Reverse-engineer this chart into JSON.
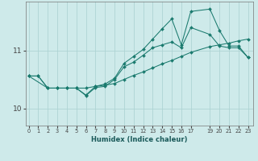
{
  "xlabel": "Humidex (Indice chaleur)",
  "bg_color": "#ceeaea",
  "line_color": "#1a7a6e",
  "grid_color": "#aed4d4",
  "x_ticks": [
    0,
    1,
    2,
    3,
    4,
    5,
    6,
    7,
    8,
    9,
    10,
    11,
    12,
    13,
    14,
    15,
    16,
    17,
    19,
    20,
    21,
    22,
    23
  ],
  "ylim": [
    9.7,
    11.85
  ],
  "xlim": [
    -0.3,
    23.5
  ],
  "yticks": [
    10,
    11
  ],
  "series_flat": [
    [
      0,
      10.56
    ],
    [
      1,
      10.56
    ],
    [
      2,
      10.35
    ],
    [
      3,
      10.35
    ],
    [
      4,
      10.35
    ],
    [
      5,
      10.35
    ],
    [
      6,
      10.35
    ],
    [
      7,
      10.38
    ],
    [
      8,
      10.4
    ],
    [
      9,
      10.43
    ],
    [
      10,
      10.5
    ],
    [
      11,
      10.57
    ],
    [
      12,
      10.63
    ],
    [
      13,
      10.7
    ],
    [
      14,
      10.77
    ],
    [
      15,
      10.83
    ],
    [
      16,
      10.9
    ],
    [
      17,
      10.97
    ],
    [
      19,
      11.07
    ],
    [
      20,
      11.1
    ],
    [
      21,
      11.13
    ],
    [
      22,
      11.17
    ],
    [
      23,
      11.2
    ]
  ],
  "series_mid": [
    [
      0,
      10.56
    ],
    [
      1,
      10.56
    ],
    [
      2,
      10.35
    ],
    [
      3,
      10.35
    ],
    [
      4,
      10.35
    ],
    [
      5,
      10.35
    ],
    [
      6,
      10.22
    ],
    [
      7,
      10.36
    ],
    [
      8,
      10.38
    ],
    [
      9,
      10.5
    ],
    [
      10,
      10.72
    ],
    [
      11,
      10.8
    ],
    [
      12,
      10.92
    ],
    [
      13,
      11.05
    ],
    [
      14,
      11.1
    ],
    [
      15,
      11.15
    ],
    [
      16,
      11.05
    ],
    [
      17,
      11.4
    ],
    [
      19,
      11.28
    ],
    [
      20,
      11.08
    ],
    [
      21,
      11.05
    ],
    [
      22,
      11.05
    ],
    [
      23,
      10.88
    ]
  ],
  "series_top": [
    [
      0,
      10.56
    ],
    [
      2,
      10.35
    ],
    [
      3,
      10.35
    ],
    [
      4,
      10.35
    ],
    [
      5,
      10.35
    ],
    [
      6,
      10.23
    ],
    [
      7,
      10.38
    ],
    [
      8,
      10.42
    ],
    [
      9,
      10.52
    ],
    [
      10,
      10.78
    ],
    [
      11,
      10.9
    ],
    [
      12,
      11.02
    ],
    [
      13,
      11.2
    ],
    [
      14,
      11.38
    ],
    [
      15,
      11.55
    ],
    [
      16,
      11.1
    ],
    [
      17,
      11.68
    ],
    [
      19,
      11.72
    ],
    [
      20,
      11.35
    ],
    [
      21,
      11.08
    ],
    [
      22,
      11.08
    ],
    [
      23,
      10.88
    ]
  ]
}
